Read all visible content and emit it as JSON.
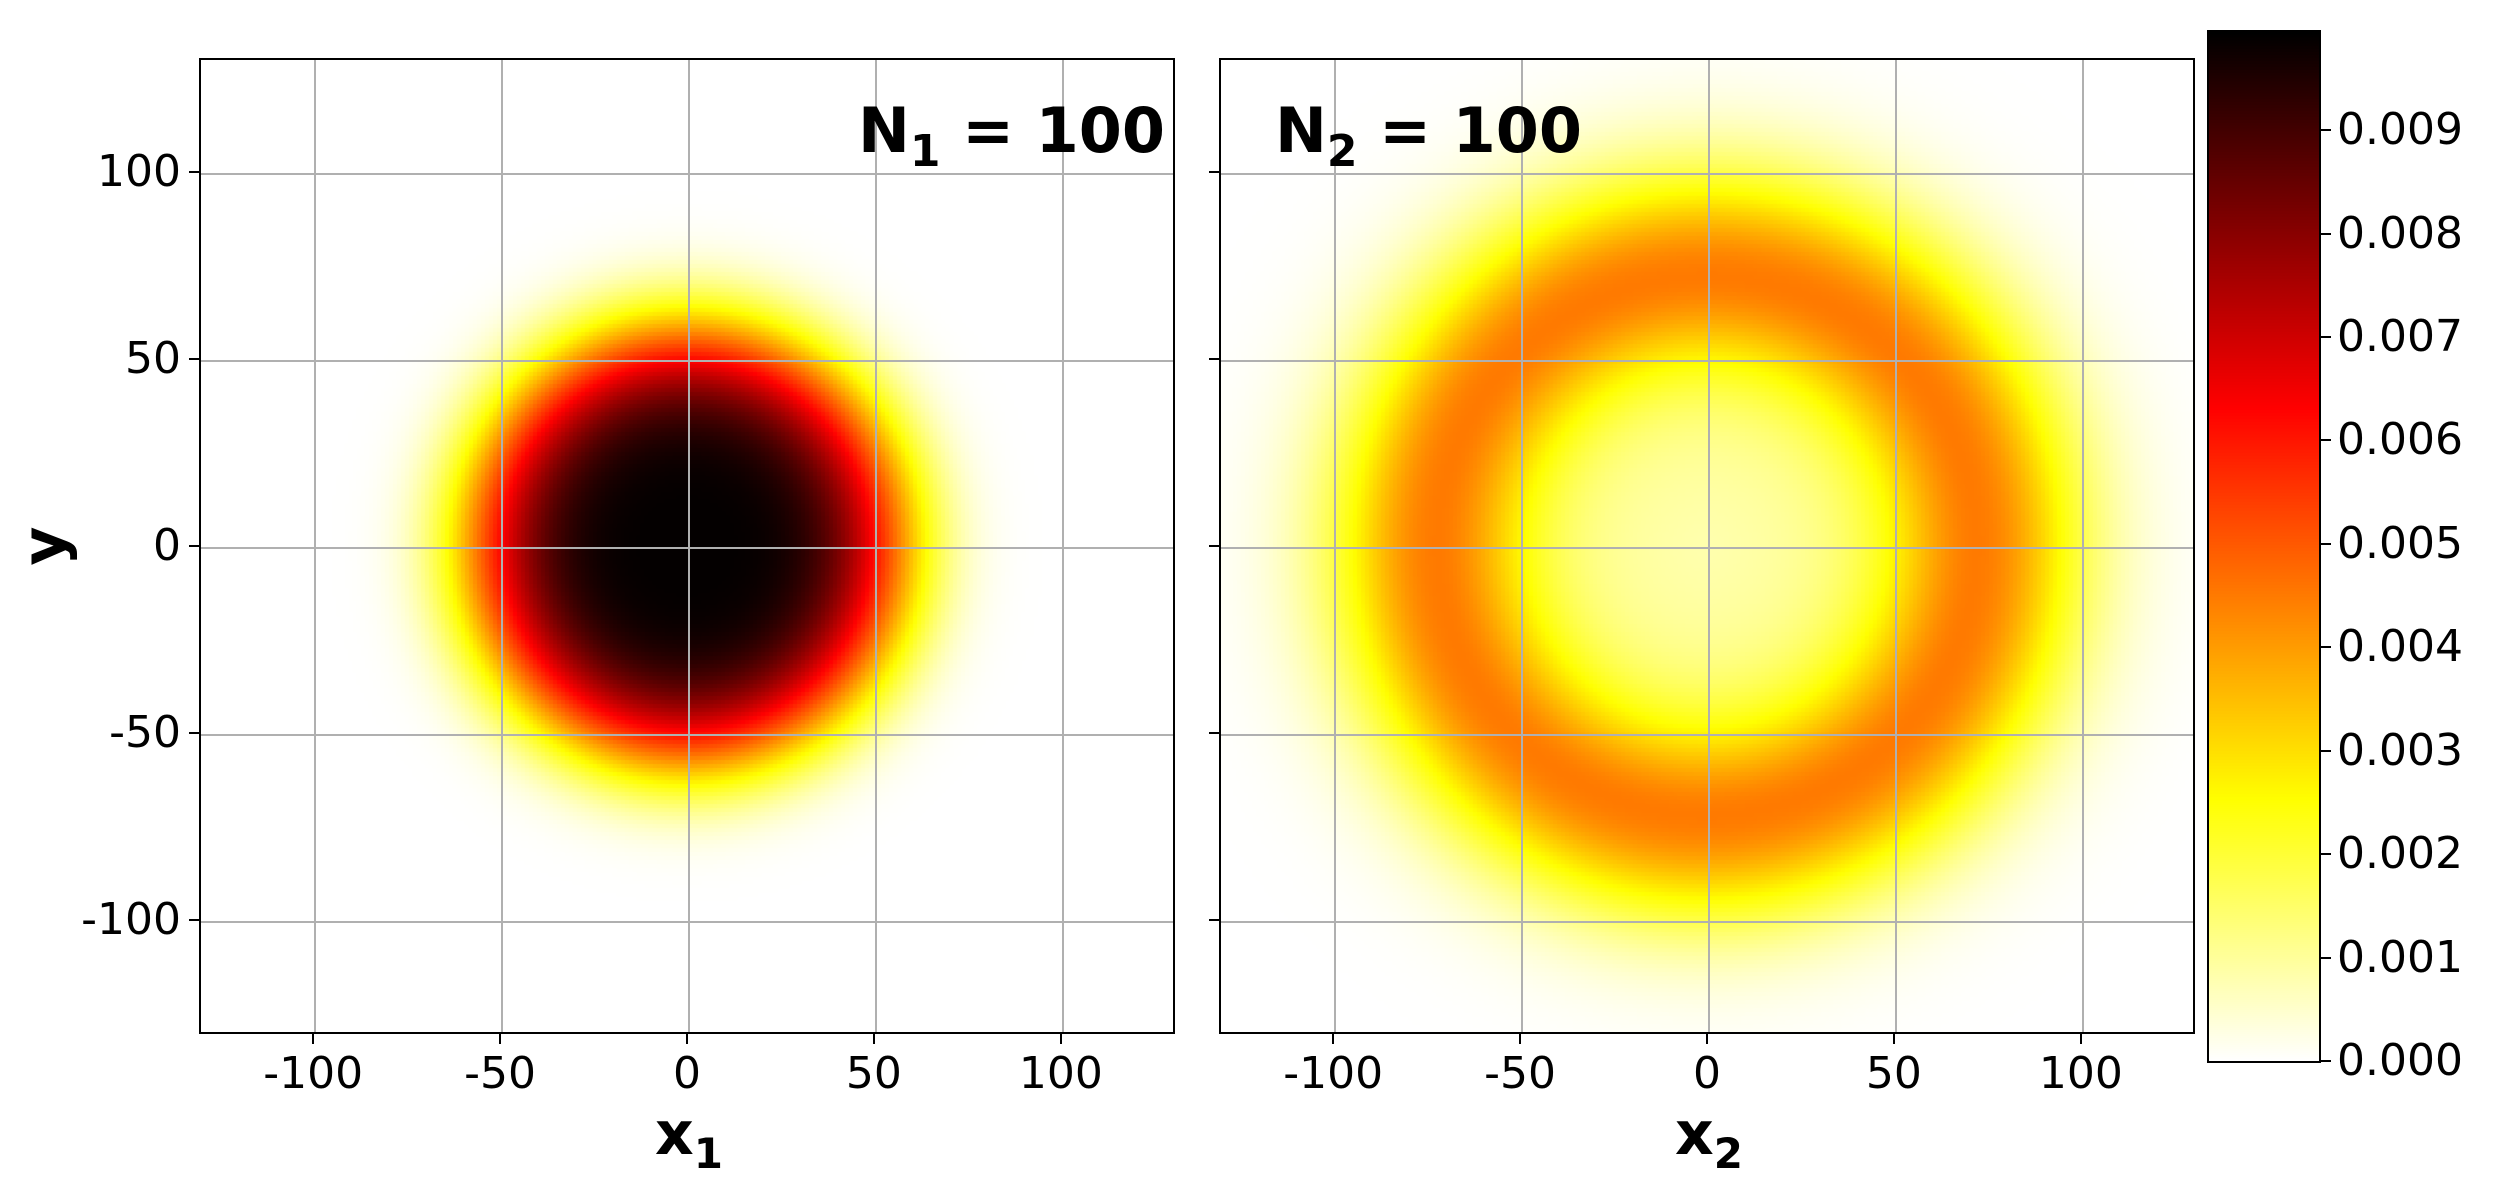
{
  "chart_data": [
    {
      "type": "heatmap",
      "panel": "left",
      "title": "",
      "annotation": {
        "symbol": "N",
        "subscript": "1",
        "equals": "=",
        "value": "100"
      },
      "xlabel": {
        "symbol": "x",
        "subscript": "1"
      },
      "ylabel": "y",
      "xlim": [
        -130,
        130
      ],
      "ylim": [
        -130,
        130
      ],
      "xticks": [
        -100,
        -50,
        0,
        50,
        100
      ],
      "yticks": [
        -100,
        -50,
        0,
        50,
        100
      ],
      "xtick_labels": [
        "-100",
        "-50",
        "0",
        "50",
        "100"
      ],
      "ytick_labels": [
        "-100",
        "-50",
        "0",
        "50",
        "100"
      ],
      "grid": true,
      "colormap": "hot_r",
      "distribution": "radially symmetric blob centered at origin",
      "radial_profile": {
        "r": [
          0,
          20,
          36,
          50,
          55,
          64,
          80,
          95,
          110
        ],
        "value": [
          0.0099,
          0.0098,
          0.0088,
          0.0063,
          0.0048,
          0.0025,
          0.0003,
          2e-05,
          0.0
        ]
      },
      "model": {
        "kind": "super_gaussian",
        "peak": 0.0099,
        "a": 59.5,
        "p": 4.33
      }
    },
    {
      "type": "heatmap",
      "panel": "right",
      "title": "",
      "annotation": {
        "symbol": "N",
        "subscript": "2",
        "equals": "=",
        "value": "100"
      },
      "xlabel": {
        "symbol": "x",
        "subscript": "2"
      },
      "ylabel": "",
      "xlim": [
        -130,
        130
      ],
      "ylim": [
        -130,
        130
      ],
      "xticks": [
        -100,
        -50,
        0,
        50,
        100
      ],
      "yticks": [
        -100,
        -50,
        0,
        50,
        100
      ],
      "xtick_labels": [
        "-100",
        "-50",
        "0",
        "50",
        "100"
      ],
      "ytick_labels": [],
      "grid": true,
      "colormap": "hot_r",
      "distribution": "ring (annulus) centered at origin",
      "radial_profile": {
        "r": [
          0,
          25,
          50,
          60,
          72,
          85,
          97,
          105,
          115
        ],
        "value": [
          0.0009,
          0.0013,
          0.0024,
          0.0036,
          0.0045,
          0.0038,
          0.0022,
          0.0009,
          0.0001
        ]
      },
      "model": {
        "kind": "ring",
        "peak": 0.0045,
        "r0": 72,
        "s_in": 18,
        "s_out": 21,
        "inner_base": 0.0008
      }
    },
    {
      "type": "colorbar",
      "colormap": "hot_r",
      "range": [
        0.0,
        0.00995
      ],
      "ticks": [
        0.0,
        0.001,
        0.002,
        0.003,
        0.004,
        0.005,
        0.006,
        0.007,
        0.008,
        0.009
      ],
      "tick_labels": [
        "0.000",
        "0.001",
        "0.002",
        "0.003",
        "0.004",
        "0.005",
        "0.006",
        "0.007",
        "0.008",
        "0.009"
      ]
    }
  ],
  "colors": {
    "grid": "#b0b0b0",
    "axis": "#000000",
    "background": "#ffffff"
  }
}
